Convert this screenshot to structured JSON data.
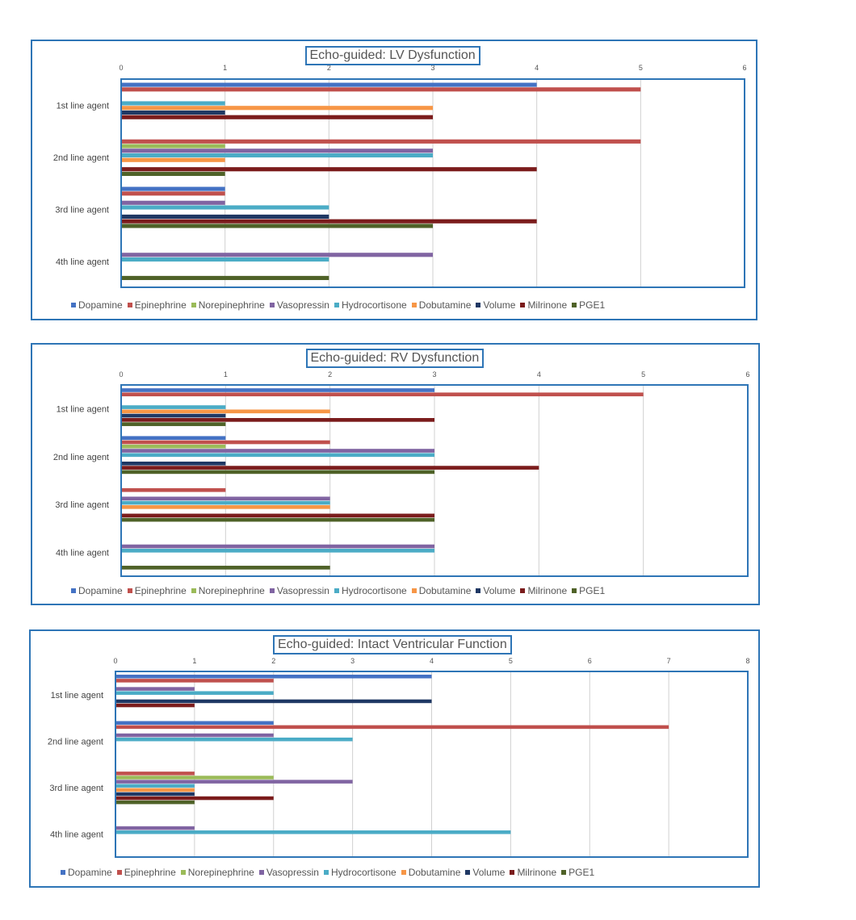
{
  "colors": {
    "Dopamine": "#4472c4",
    "Epinephrine": "#c0504d",
    "Norepinephrine": "#9bbb59",
    "Vasopressin": "#8064a2",
    "Hydrocortisone": "#4bacc6",
    "Dobutamine": "#f79646",
    "Volume": "#1f3864",
    "Milrinone": "#7b1c1c",
    "PGE1": "#4f6228"
  },
  "chart_data": [
    {
      "type": "bar",
      "orientation": "horizontal",
      "title": "Echo-guided: LV Dysfunction",
      "categories": [
        "1st line agent",
        "2nd line agent",
        "3rd line agent",
        "4th line agent"
      ],
      "xlim": [
        0,
        6
      ],
      "xticks": [
        "0",
        "1",
        "2",
        "3",
        "4",
        "5",
        "6"
      ],
      "legend_position": "bottom",
      "grid": true,
      "series": [
        {
          "name": "Dopamine",
          "values": [
            4,
            0,
            1,
            0
          ]
        },
        {
          "name": "Epinephrine",
          "values": [
            5,
            5,
            1,
            0
          ]
        },
        {
          "name": "Norepinephrine",
          "values": [
            0,
            1,
            0,
            0
          ]
        },
        {
          "name": "Vasopressin",
          "values": [
            0,
            3,
            1,
            3
          ]
        },
        {
          "name": "Hydrocortisone",
          "values": [
            1,
            3,
            2,
            2
          ]
        },
        {
          "name": "Dobutamine",
          "values": [
            3,
            1,
            0,
            0
          ]
        },
        {
          "name": "Volume",
          "values": [
            1,
            0,
            2,
            0
          ]
        },
        {
          "name": "Milrinone",
          "values": [
            3,
            4,
            4,
            0
          ]
        },
        {
          "name": "PGE1",
          "values": [
            0,
            1,
            3,
            2
          ]
        }
      ]
    },
    {
      "type": "bar",
      "orientation": "horizontal",
      "title": "Echo-guided: RV Dysfunction",
      "categories": [
        "1st line agent",
        "2nd line agent",
        "3rd line agent",
        "4th line agent"
      ],
      "xlim": [
        0,
        6
      ],
      "xticks": [
        "0",
        "1",
        "2",
        "3",
        "4",
        "5",
        "6"
      ],
      "legend_position": "bottom",
      "grid": true,
      "series": [
        {
          "name": "Dopamine",
          "values": [
            3,
            1,
            0,
            0
          ]
        },
        {
          "name": "Epinephrine",
          "values": [
            5,
            2,
            1,
            0
          ]
        },
        {
          "name": "Norepinephrine",
          "values": [
            0,
            1,
            0,
            0
          ]
        },
        {
          "name": "Vasopressin",
          "values": [
            0,
            3,
            2,
            3
          ]
        },
        {
          "name": "Hydrocortisone",
          "values": [
            1,
            3,
            2,
            3
          ]
        },
        {
          "name": "Dobutamine",
          "values": [
            2,
            0,
            2,
            0
          ]
        },
        {
          "name": "Volume",
          "values": [
            1,
            1,
            0,
            0
          ]
        },
        {
          "name": "Milrinone",
          "values": [
            3,
            4,
            3,
            0
          ]
        },
        {
          "name": "PGE1",
          "values": [
            1,
            3,
            3,
            2
          ]
        }
      ]
    },
    {
      "type": "bar",
      "orientation": "horizontal",
      "title": "Echo-guided: Intact Ventricular Function",
      "categories": [
        "1st line agent",
        "2nd line agent",
        "3rd line agent",
        "4th line agent"
      ],
      "xlim": [
        0,
        8
      ],
      "xticks": [
        "0",
        "1",
        "2",
        "3",
        "4",
        "5",
        "6",
        "7",
        "8"
      ],
      "legend_position": "bottom",
      "grid": true,
      "series": [
        {
          "name": "Dopamine",
          "values": [
            4,
            2,
            0,
            0
          ]
        },
        {
          "name": "Epinephrine",
          "values": [
            2,
            7,
            1,
            0
          ]
        },
        {
          "name": "Norepinephrine",
          "values": [
            0,
            0,
            2,
            0
          ]
        },
        {
          "name": "Vasopressin",
          "values": [
            1,
            2,
            3,
            1
          ]
        },
        {
          "name": "Hydrocortisone",
          "values": [
            2,
            3,
            1,
            5
          ]
        },
        {
          "name": "Dobutamine",
          "values": [
            0,
            0,
            1,
            0
          ]
        },
        {
          "name": "Volume",
          "values": [
            4,
            0,
            1,
            0
          ]
        },
        {
          "name": "Milrinone",
          "values": [
            1,
            0,
            2,
            0
          ]
        },
        {
          "name": "PGE1",
          "values": [
            0,
            0,
            1,
            0
          ]
        }
      ]
    }
  ]
}
